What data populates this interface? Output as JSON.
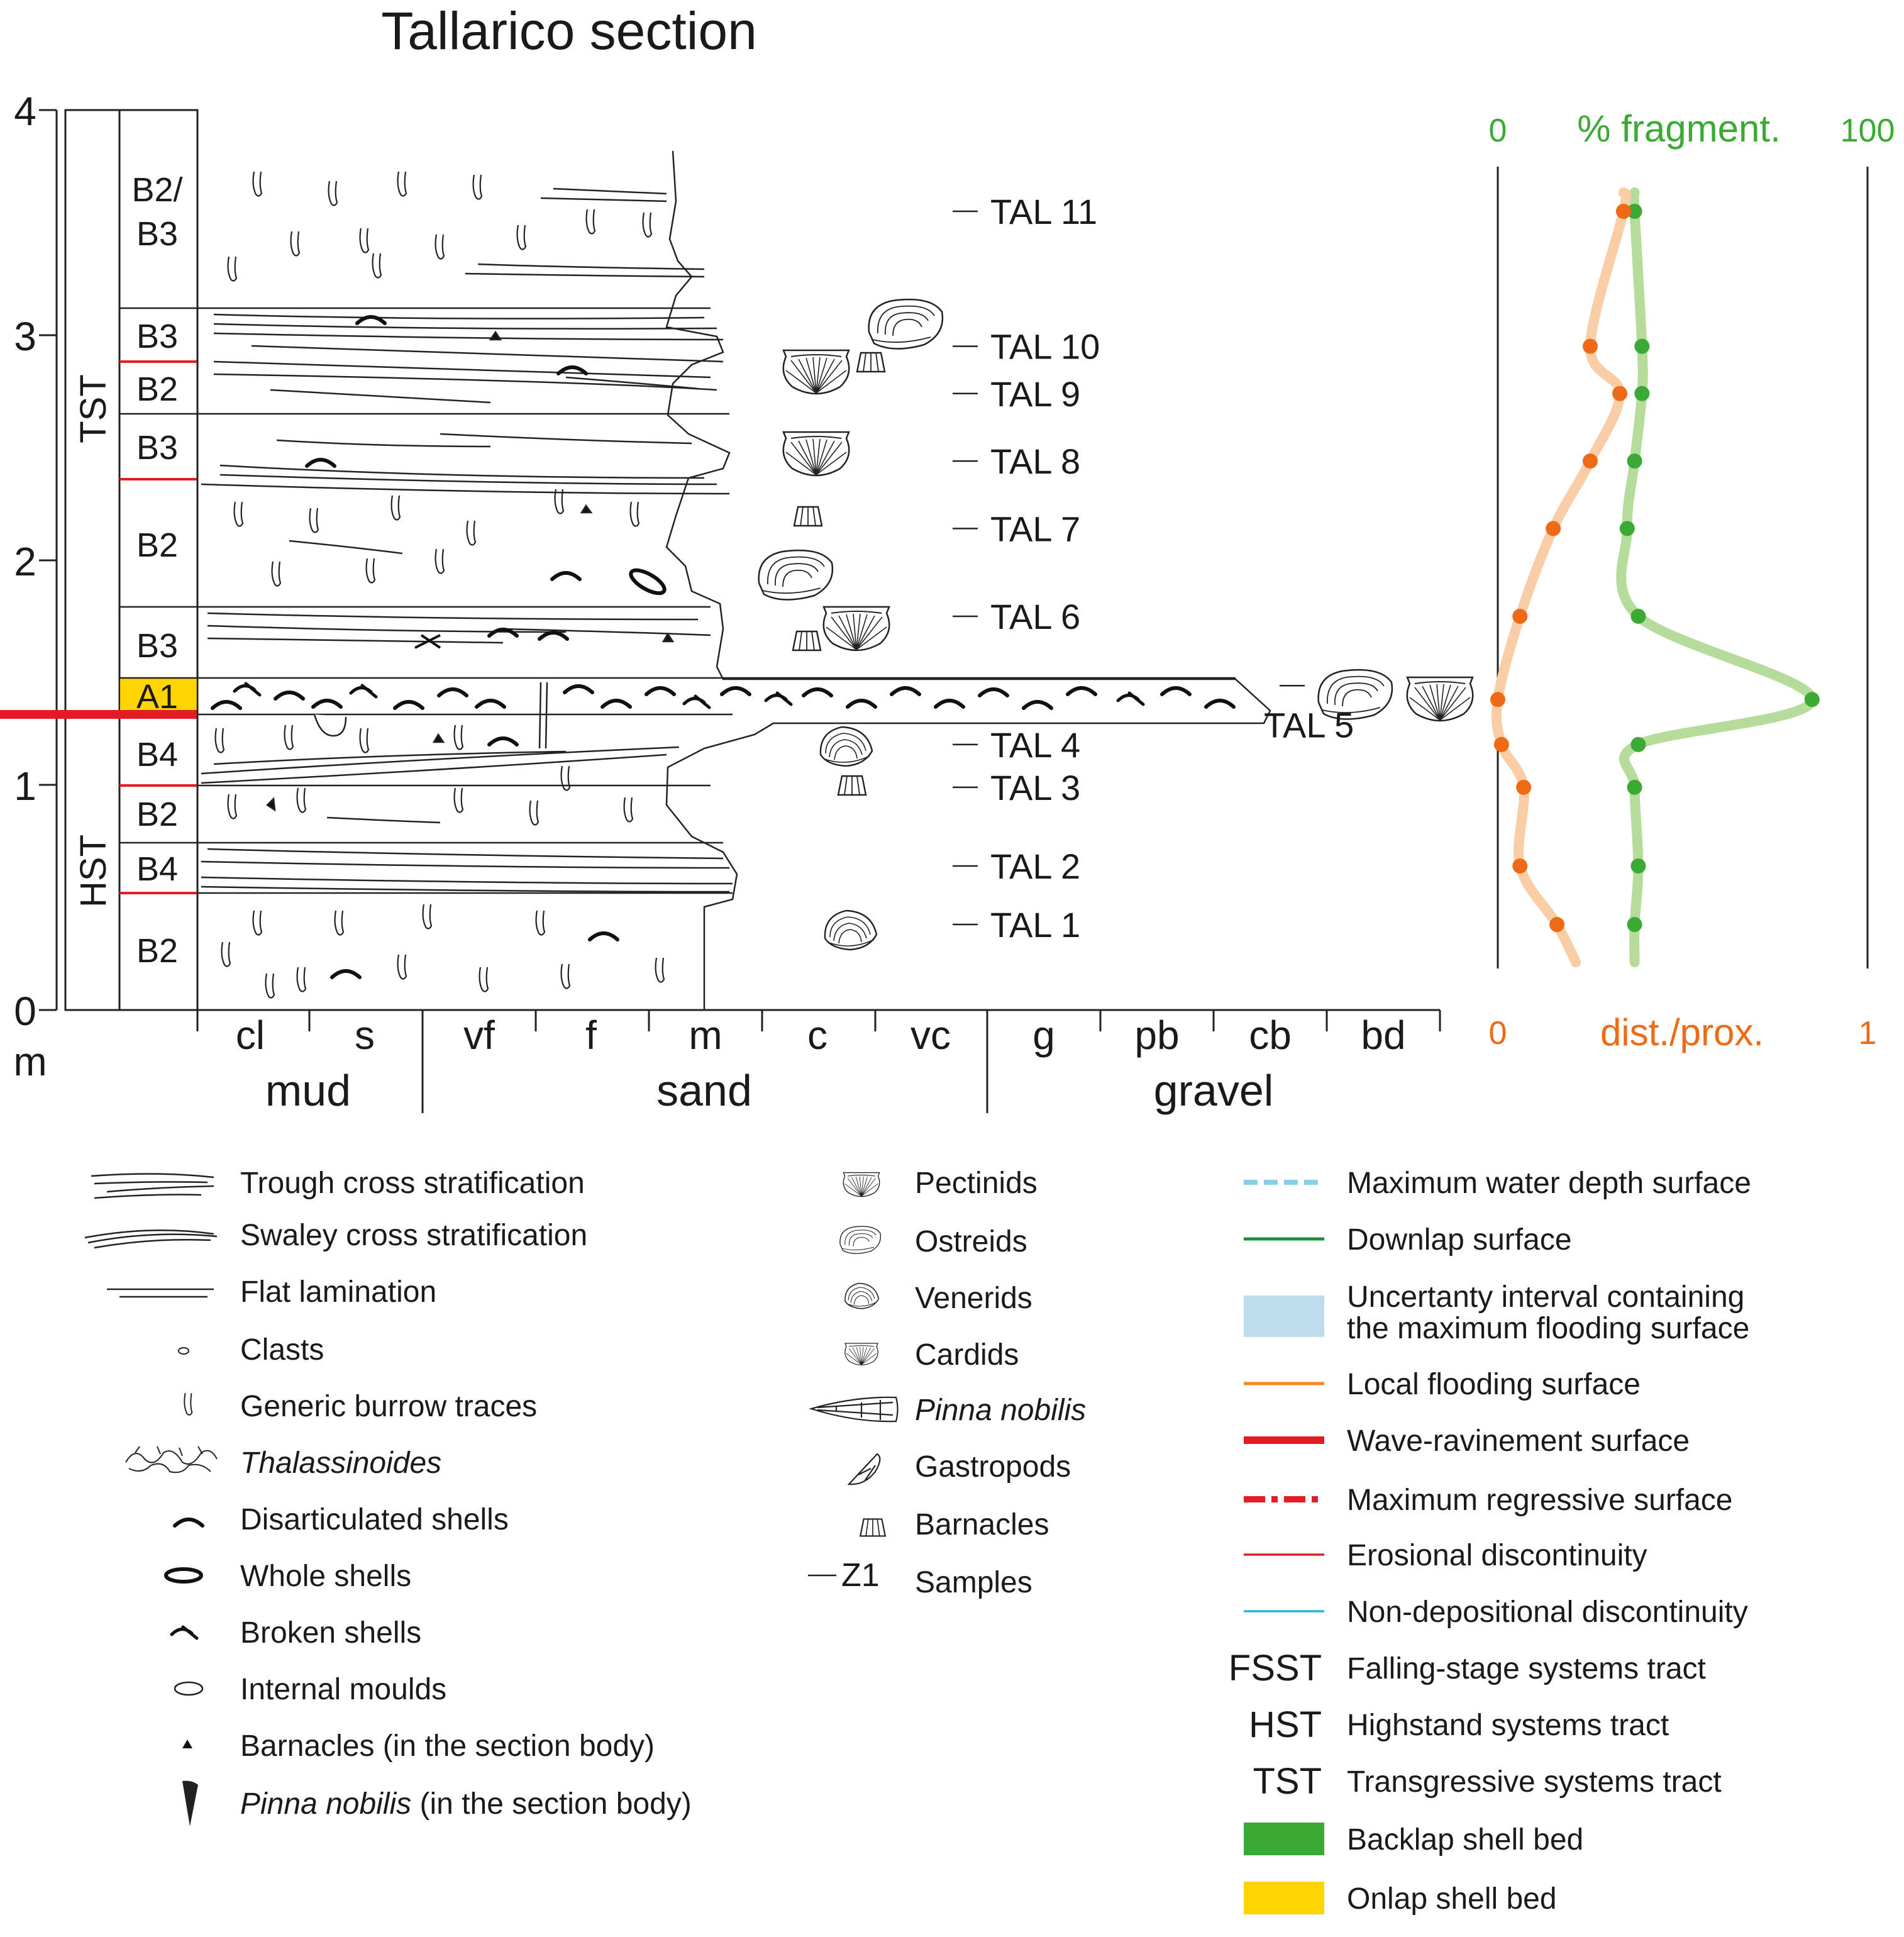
{
  "title": "Tallarico section",
  "depth_axis": {
    "unit": "m",
    "ticks": [
      "0",
      "1",
      "2",
      "3",
      "4"
    ]
  },
  "systems_tracts": [
    "TST",
    "HST"
  ],
  "units": [
    "B2/ B3",
    "B3",
    "B2",
    "B3",
    "B2",
    "B3",
    "A1",
    "B4",
    "B2",
    "B4",
    "B2"
  ],
  "grain_size": {
    "classes": [
      "cl",
      "s",
      "vf",
      "f",
      "m",
      "c",
      "vc",
      "g",
      "pb",
      "cb",
      "bd"
    ],
    "groups": [
      "mud",
      "sand",
      "gravel"
    ]
  },
  "samples": [
    {
      "id": "TAL 11",
      "height_m": 3.55
    },
    {
      "id": "TAL 10",
      "height_m": 2.95
    },
    {
      "id": "TAL 9",
      "height_m": 2.74
    },
    {
      "id": "TAL 8",
      "height_m": 2.44
    },
    {
      "id": "TAL 7",
      "height_m": 2.14
    },
    {
      "id": "TAL 6",
      "height_m": 1.75
    },
    {
      "id": "TAL 5",
      "height_m": 1.38
    },
    {
      "id": "TAL 4",
      "height_m": 1.18
    },
    {
      "id": "TAL 3",
      "height_m": 0.99
    },
    {
      "id": "TAL 2",
      "height_m": 0.64
    },
    {
      "id": "TAL 1",
      "height_m": 0.38
    }
  ],
  "chart_data": {
    "type": "line",
    "series": [
      {
        "name": "% fragment.",
        "color": "#3aaa35",
        "axis": {
          "min_label": "0",
          "max_label": "100",
          "min": 0,
          "max": 100
        },
        "values": [
          {
            "sample": "TAL 11",
            "value": 37
          },
          {
            "sample": "TAL 10",
            "value": 39
          },
          {
            "sample": "TAL 9",
            "value": 39
          },
          {
            "sample": "TAL 8",
            "value": 37
          },
          {
            "sample": "TAL 7",
            "value": 35
          },
          {
            "sample": "TAL 6",
            "value": 38
          },
          {
            "sample": "TAL 5",
            "value": 85
          },
          {
            "sample": "TAL 4",
            "value": 38
          },
          {
            "sample": "TAL 3",
            "value": 37
          },
          {
            "sample": "TAL 2",
            "value": 38
          },
          {
            "sample": "TAL 1",
            "value": 37
          }
        ]
      },
      {
        "name": "dist./prox.",
        "color": "#ee6a16",
        "axis": {
          "min_label": "0",
          "max_label": "1",
          "min": 0,
          "max": 1
        },
        "values": [
          {
            "sample": "TAL 11",
            "value": 0.34
          },
          {
            "sample": "TAL 10",
            "value": 0.25
          },
          {
            "sample": "TAL 9",
            "value": 0.33
          },
          {
            "sample": "TAL 8",
            "value": 0.25
          },
          {
            "sample": "TAL 7",
            "value": 0.15
          },
          {
            "sample": "TAL 6",
            "value": 0.06
          },
          {
            "sample": "TAL 5",
            "value": 0.0
          },
          {
            "sample": "TAL 4",
            "value": 0.01
          },
          {
            "sample": "TAL 3",
            "value": 0.07
          },
          {
            "sample": "TAL 2",
            "value": 0.06
          },
          {
            "sample": "TAL 1",
            "value": 0.16
          }
        ]
      }
    ]
  },
  "legend_sedimentary": [
    {
      "symbol": "trough-cross-icon",
      "label": "Trough cross stratification"
    },
    {
      "symbol": "swaley-cross-icon",
      "label": "Swaley cross stratification"
    },
    {
      "symbol": "flat-lamination-icon",
      "label": "Flat lamination"
    },
    {
      "symbol": "clast-icon",
      "label": "Clasts"
    },
    {
      "symbol": "burrow-icon",
      "label": "Generic burrow traces"
    },
    {
      "symbol": "thalassinoides-icon",
      "label": "Thalassinoides",
      "italic": true
    },
    {
      "symbol": "disarticulated-shell-icon",
      "label": "Disarticulated shells"
    },
    {
      "symbol": "whole-shell-icon",
      "label": "Whole shells"
    },
    {
      "symbol": "broken-shell-icon",
      "label": "Broken shells"
    },
    {
      "symbol": "internal-mould-icon",
      "label": "Internal moulds"
    },
    {
      "symbol": "barnacle-body-icon",
      "label": "Barnacles (in the section body)"
    },
    {
      "symbol": "pinna-body-icon",
      "label_italic": "Pinna nobilis",
      "label_rest": " (in the section body)"
    }
  ],
  "legend_fossils": [
    {
      "symbol": "pectinid-icon",
      "label": "Pectinids"
    },
    {
      "symbol": "ostreid-icon",
      "label": "Ostreids"
    },
    {
      "symbol": "venerid-icon",
      "label": "Venerids"
    },
    {
      "symbol": "cardid-icon",
      "label": "Cardids"
    },
    {
      "symbol": "pinna-icon",
      "label": "Pinna nobilis",
      "italic": true
    },
    {
      "symbol": "gastropod-icon",
      "label": "Gastropods"
    },
    {
      "symbol": "barnacle-icon",
      "label": "Barnacles"
    },
    {
      "symbol": "sample-icon",
      "symbol_text": "Z1",
      "label": "Samples"
    }
  ],
  "legend_surfaces": [
    {
      "symbol": "max-water-depth-icon",
      "label": "Maximum water depth surface",
      "color": "#87ceeb"
    },
    {
      "symbol": "downlap-icon",
      "label": "Downlap surface",
      "color": "#1e8e3e"
    },
    {
      "symbol": "uncertainty-icon",
      "label": "Uncertanty interval containing the maximum flooding surface",
      "color": "#bfdcef"
    },
    {
      "symbol": "local-flooding-icon",
      "label": "Local flooding surface",
      "color": "#f28a1e"
    },
    {
      "symbol": "wave-ravinement-icon",
      "label": "Wave-ravinement surface",
      "color": "#e31b23"
    },
    {
      "symbol": "max-regressive-icon",
      "label": "Maximum regressive surface",
      "color": "#e31b23"
    },
    {
      "symbol": "erosional-icon",
      "label": "Erosional discontinuity",
      "color": "#e31b23"
    },
    {
      "symbol": "non-depositional-icon",
      "label": "Non-depositional discontinuity",
      "color": "#29b6d8"
    },
    {
      "abbr": "FSST",
      "label": "Falling-stage systems tract"
    },
    {
      "abbr": "HST",
      "label": "Highstand systems tract"
    },
    {
      "abbr": "TST",
      "label": "Transgressive systems tract"
    },
    {
      "symbol": "backlap-icon",
      "label": "Backlap shell bed",
      "color": "#3aaa35"
    },
    {
      "symbol": "onlap-icon",
      "label": "Onlap shell bed",
      "color": "#ffd400"
    }
  ]
}
